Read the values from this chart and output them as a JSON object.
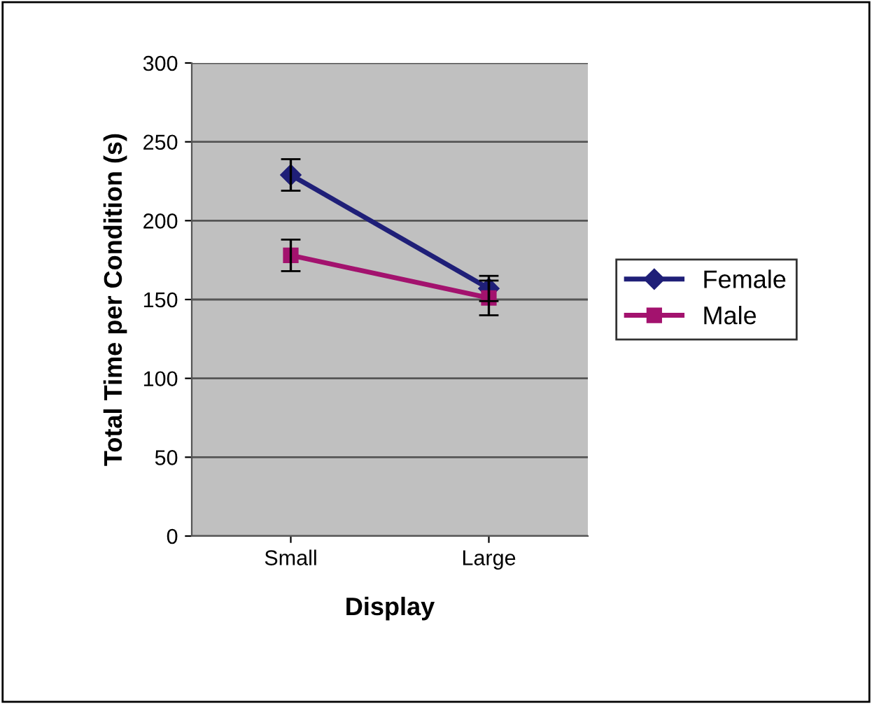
{
  "chart_data": {
    "type": "line",
    "xlabel": "Display",
    "ylabel": "Total Time per Condition (s)",
    "categories": [
      "Small",
      "Large"
    ],
    "series": [
      {
        "name": "Female",
        "color": "#1f1f78",
        "marker": "diamond",
        "values": [
          229,
          157
        ],
        "errors": [
          10,
          8
        ]
      },
      {
        "name": "Male",
        "color": "#a3126e",
        "marker": "square",
        "values": [
          178,
          151
        ],
        "errors": [
          10,
          11
        ]
      }
    ],
    "ylim": [
      0,
      300
    ],
    "yticks": [
      0,
      50,
      100,
      150,
      200,
      250,
      300
    ],
    "grid": "y",
    "legend": "right"
  }
}
